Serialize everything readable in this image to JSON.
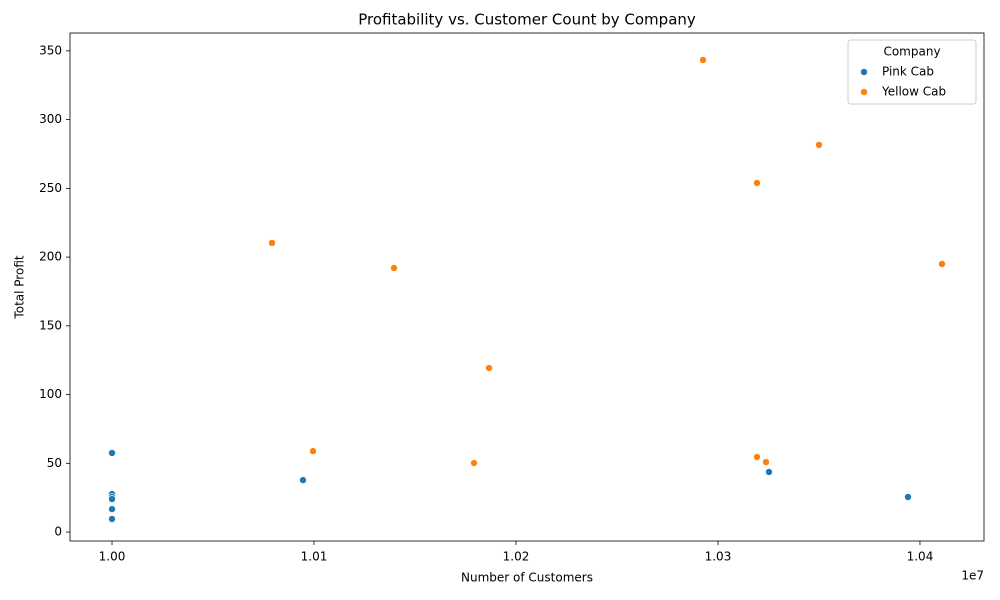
{
  "chart_data": {
    "type": "scatter",
    "title": "Profitability vs. Customer Count by Company",
    "x_label": "Number of Customers",
    "y_label": "Total Profit",
    "x_offset_label": "1e7",
    "legend_title": "Company",
    "legend_position": "upper right",
    "xlim": [
      9979200,
      10431700
    ],
    "ylim": [
      -6.5,
      363
    ],
    "xticks": [
      {
        "value": 10000000,
        "label": "1.00"
      },
      {
        "value": 10100000,
        "label": "1.01"
      },
      {
        "value": 10200000,
        "label": "1.02"
      },
      {
        "value": 10300000,
        "label": "1.03"
      },
      {
        "value": 10400000,
        "label": "1.04"
      }
    ],
    "yticks": [
      0,
      50,
      100,
      150,
      200,
      250,
      300,
      350
    ],
    "series": [
      {
        "name": "Pink Cab",
        "color": "#1f77b4",
        "x": [
          10000000,
          10000000,
          10000000,
          10000000,
          10000000,
          10000000,
          10094550,
          10325250,
          10394060
        ],
        "values": [
          57.5,
          27.6,
          25.5,
          24.0,
          16.7,
          9.5,
          37.8,
          43.7,
          25.5
        ]
      },
      {
        "name": "Yellow Cab",
        "color": "#ff7f0e",
        "x": [
          10292570,
          10350000,
          10319310,
          10079210,
          10410890,
          10139600,
          10186630,
          10099500,
          10179210,
          10319310,
          10323760
        ],
        "values": [
          343.4,
          281.6,
          253.9,
          210.3,
          195.0,
          192.1,
          119.3,
          58.9,
          50.2,
          54.6,
          50.9
        ]
      }
    ]
  }
}
